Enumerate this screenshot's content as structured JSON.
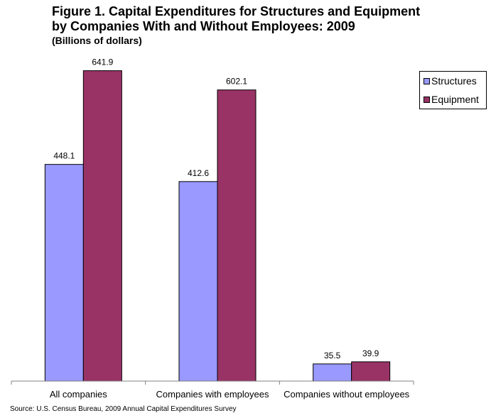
{
  "title": {
    "line1": "Figure 1. Capital Expenditures for Structures and Equipment",
    "line2": "by Companies With and Without Employees: 2009",
    "subtitle": "(Billions of dollars)"
  },
  "source": "Source: U.S. Census Bureau, 2009 Annual Capital Expenditures Survey",
  "legend": {
    "items": [
      {
        "label": "Structures",
        "color": "#9999FF"
      },
      {
        "label": "Equipment",
        "color": "#993366"
      }
    ]
  },
  "chart_data": {
    "type": "bar",
    "categories": [
      "All companies",
      "Companies with employees",
      "Companies without employees"
    ],
    "series": [
      {
        "name": "Structures",
        "color": "#9999FF",
        "values": [
          448.1,
          412.6,
          35.5
        ],
        "labels": [
          "448.1",
          "412.6",
          "35.5"
        ]
      },
      {
        "name": "Equipment",
        "color": "#993366",
        "values": [
          641.9,
          602.1,
          39.9
        ],
        "labels": [
          "641.9",
          "602.1",
          "39.9"
        ]
      }
    ],
    "title": "Figure 1. Capital Expenditures for Structures and Equipment by Companies With and Without Employees: 2009",
    "subtitle": "(Billions of dollars)",
    "ylim": [
      0,
      700
    ],
    "grid": false,
    "legend_position": "top-right"
  }
}
